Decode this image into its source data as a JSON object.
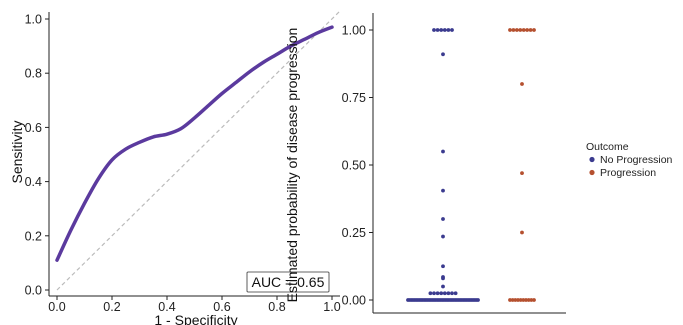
{
  "chart_data": [
    {
      "type": "line",
      "xlabel": "1 - Specificity",
      "ylabel": "Sensitivity",
      "xlim": [
        0,
        1
      ],
      "ylim": [
        0,
        1
      ],
      "xticks": [
        "0.0",
        "0.2",
        "0.4",
        "0.6",
        "0.8",
        "1.0"
      ],
      "yticks": [
        "0.0",
        "0.2",
        "0.4",
        "0.6",
        "0.8",
        "1.0"
      ],
      "series": [
        {
          "color": "#5b3a9e",
          "x": [
            0.0,
            0.05,
            0.1,
            0.15,
            0.2,
            0.25,
            0.3,
            0.35,
            0.4,
            0.45,
            0.5,
            0.55,
            0.6,
            0.65,
            0.7,
            0.75,
            0.8,
            0.85,
            0.9,
            0.95,
            1.0
          ],
          "y": [
            0.11,
            0.22,
            0.32,
            0.41,
            0.48,
            0.52,
            0.545,
            0.565,
            0.575,
            0.595,
            0.635,
            0.68,
            0.725,
            0.765,
            0.805,
            0.84,
            0.87,
            0.9,
            0.925,
            0.95,
            0.97
          ]
        }
      ],
      "reference_line": {
        "x": [
          0,
          1
        ],
        "y": [
          0,
          1
        ],
        "style": "dashed",
        "color": "#bbbbbb"
      },
      "annotation": "AUC = 0.65",
      "annotation_position": "bottom-right",
      "grid": false
    },
    {
      "type": "scatter",
      "ylabel": "Estimated probability of disease progression",
      "xlabel": "",
      "ylim": [
        0,
        1
      ],
      "yticks": [
        "0.00",
        "0.25",
        "0.50",
        "0.75",
        "1.00"
      ],
      "categories": [
        "No Progression",
        "Progression"
      ],
      "legend_title": "Outcome",
      "legend_position": "right",
      "grid": false,
      "series": [
        {
          "name": "No Progression",
          "color": "#3b3b8f",
          "values": [
            1.0,
            1.0,
            1.0,
            1.0,
            1.0,
            1.0,
            0.91,
            0.55,
            0.405,
            0.3,
            0.235,
            0.125,
            0.085,
            0.08,
            0.05,
            0.025,
            0.025,
            0.025,
            0.025,
            0.025,
            0.025,
            0.025,
            0.025,
            0.0,
            0.0,
            0.0,
            0.0,
            0.0,
            0.0,
            0.0,
            0.0,
            0.0,
            0.0,
            0.0,
            0.0,
            0.0,
            0.0,
            0.0,
            0.0,
            0.0,
            0.0,
            0.0,
            0.0,
            0.0,
            0.0,
            0.0,
            0.0,
            0.0,
            0.0,
            0.0,
            0.0,
            0.0,
            0.0,
            0.0,
            0.0,
            0.0,
            0.0,
            0.0,
            0.0,
            0.0,
            0.0,
            0.0,
            0.0,
            0.0,
            0.0,
            0.0,
            0.0
          ]
        },
        {
          "name": "Progression",
          "color": "#b5502f",
          "values": [
            1.0,
            1.0,
            1.0,
            1.0,
            1.0,
            1.0,
            1.0,
            1.0,
            0.8,
            0.47,
            0.25,
            0.0,
            0.0,
            0.0,
            0.0,
            0.0,
            0.0,
            0.0,
            0.0,
            0.0,
            0.0
          ]
        }
      ]
    }
  ]
}
